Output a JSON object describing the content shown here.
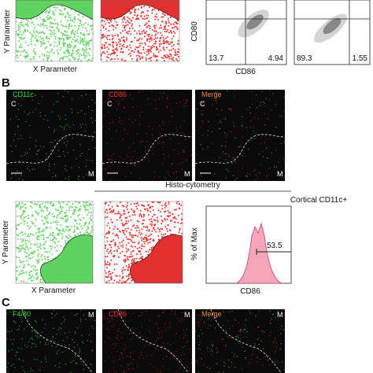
{
  "panel_a": {
    "y_axis": "Y Parameter",
    "x_axis": "X Parameter",
    "flow_y_axis": "CD80",
    "flow_x_axis": "CD86",
    "quadrants": [
      [
        13.7,
        4.94
      ],
      [
        89.3,
        1.55
      ]
    ]
  },
  "panel_b": {
    "label": "B",
    "channels": [
      "CD11c",
      "CD86",
      "Merge"
    ],
    "cortex": "C",
    "medulla": "M",
    "section_title": "Histo-cytometry",
    "y_axis": "Y Parameter",
    "x_axis": "X Parameter",
    "histogram_title": "Cortical CD11c+",
    "histogram_y_axis": "% of Max",
    "histogram_x_axis": "CD86",
    "gate_value": 53.5
  },
  "panel_c": {
    "label": "C",
    "channels": [
      "F4/80",
      "CD86",
      "Merge"
    ],
    "medulla": "M"
  }
}
